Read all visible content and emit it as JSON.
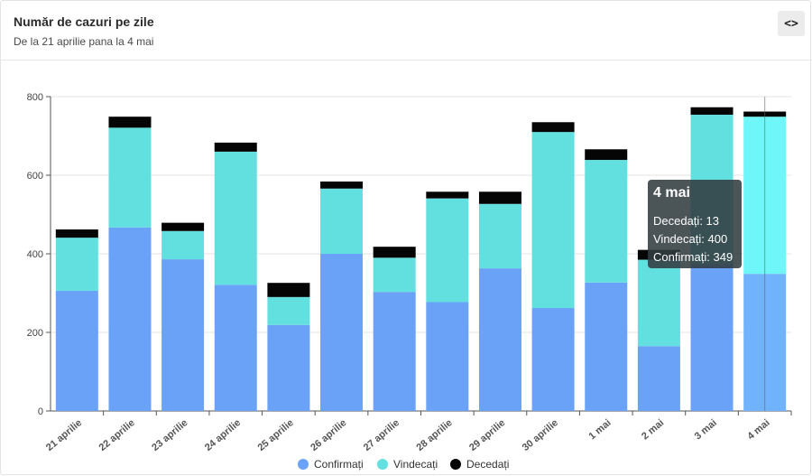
{
  "header": {
    "title": "Număr de cazuri pe zile",
    "subtitle": "De la 21 aprilie pana la 4 mai",
    "embed_label": "<>"
  },
  "colors": {
    "confirmati": "#6aa2f8",
    "vindecati": "#62dfdf",
    "decedati": "#050505",
    "confirmati_highlight": "#70b2fc",
    "vindecati_highlight": "#6ef6f8"
  },
  "chart_data": {
    "type": "bar",
    "stacked": true,
    "categories": [
      "21 aprilie",
      "22 aprilie",
      "23 aprilie",
      "24 aprilie",
      "25 aprilie",
      "26 aprilie",
      "27 aprilie",
      "28 aprilie",
      "29 aprilie",
      "30 aprilie",
      "1 mai",
      "2 mai",
      "3 mai",
      "4 mai"
    ],
    "series": [
      {
        "name": "Confirmați",
        "values": [
          306,
          467,
          386,
          321,
          219,
          400,
          303,
          277,
          363,
          262,
          327,
          165,
          374,
          349
        ]
      },
      {
        "name": "Vindecați",
        "values": [
          135,
          254,
          72,
          339,
          71,
          166,
          87,
          264,
          164,
          448,
          312,
          220,
          380,
          400
        ]
      },
      {
        "name": "Decedați",
        "values": [
          21,
          28,
          21,
          23,
          36,
          18,
          28,
          17,
          31,
          25,
          27,
          25,
          19,
          13
        ]
      }
    ],
    "ylim": [
      0,
      800
    ],
    "yticks": [
      0,
      200,
      400,
      600,
      800
    ],
    "legend_position": "bottom-center",
    "highlighted_category": "4 mai"
  },
  "tooltip": {
    "title": "4 mai",
    "rows": [
      {
        "label": "Decedați",
        "value": "13"
      },
      {
        "label": "Vindecați",
        "value": "400"
      },
      {
        "label": "Confirmați",
        "value": "349"
      }
    ]
  }
}
